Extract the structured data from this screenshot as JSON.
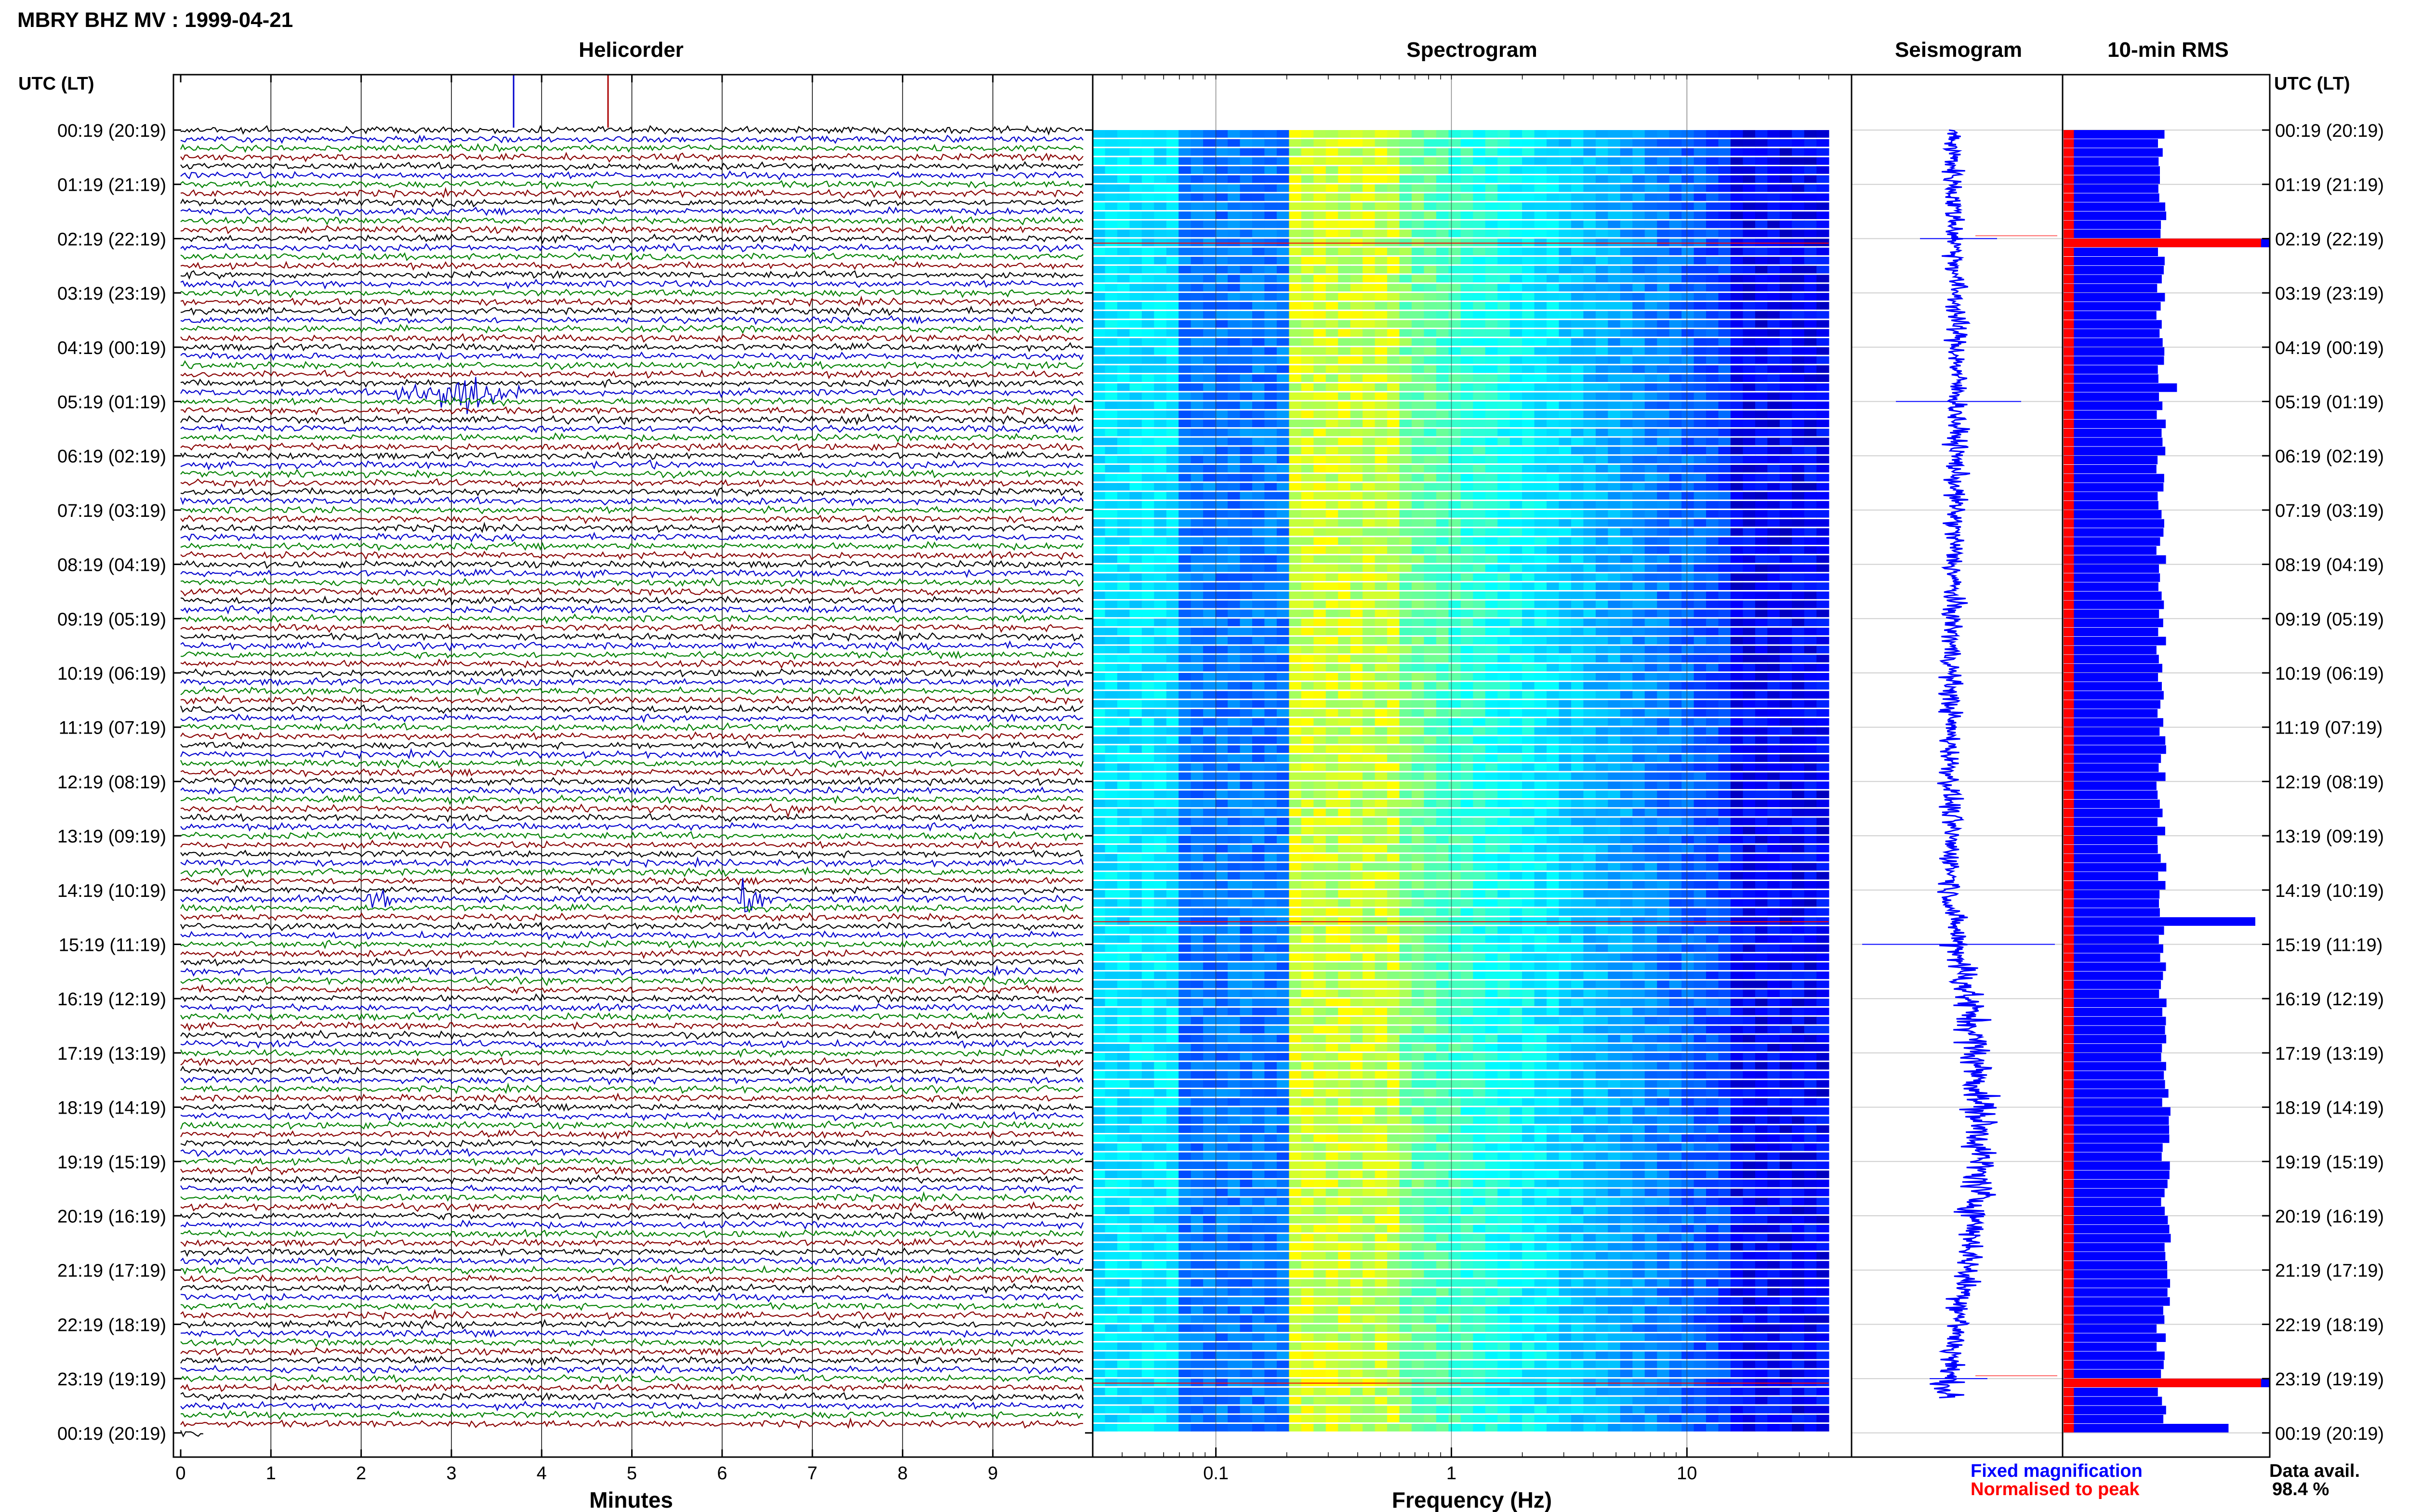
{
  "header": {
    "station_title": "MBRY BHZ MV : 1999-04-21"
  },
  "panels": {
    "helicorder": "Helicorder",
    "spectrogram": "Spectrogram",
    "seismogram": "Seismogram",
    "rms": "10-min RMS"
  },
  "axis_labels": {
    "time_header_left": "UTC (LT)",
    "time_header_right": "UTC (LT)",
    "helicorder_x": "Minutes",
    "spectrogram_x": "Frequency (Hz)"
  },
  "legend": {
    "fixed": "Fixed magnification",
    "normalised": "Normalised to peak",
    "data_avail_label": "Data avail.",
    "data_avail_value": "98.4 %"
  },
  "colors": {
    "trace_cycle": [
      "#000000",
      "#0000cc",
      "#008000",
      "#880000"
    ],
    "fixed_blue": "#0000ff",
    "normalised_red": "#ff0000"
  },
  "chart_data": [
    {
      "type": "line",
      "panel": "helicorder",
      "xlabel": "Minutes",
      "xlim": [
        0,
        10
      ],
      "x_ticks": [
        0,
        1,
        2,
        3,
        4,
        5,
        6,
        7,
        8,
        9
      ],
      "time_labels": [
        "00:19 (20:19)",
        "01:19 (21:19)",
        "02:19 (22:19)",
        "03:19 (23:19)",
        "04:19 (00:19)",
        "05:19 (01:19)",
        "06:19 (02:19)",
        "07:19 (03:19)",
        "08:19 (04:19)",
        "09:19 (05:19)",
        "10:19 (06:19)",
        "11:19 (07:19)",
        "12:19 (08:19)",
        "13:19 (09:19)",
        "14:19 (10:19)",
        "15:19 (11:19)",
        "16:19 (12:19)",
        "17:19 (13:19)",
        "18:19 (14:19)",
        "19:19 (15:19)",
        "20:19 (16:19)",
        "21:19 (17:19)",
        "22:19 (18:19)",
        "23:19 (19:19)",
        "00:19 (20:19)"
      ],
      "traces_per_hour": 6,
      "events": [
        {
          "row": 29,
          "minute": 2.5,
          "amp": 3.0,
          "dur": 0.6
        },
        {
          "row": 29,
          "minute": 3.0,
          "amp": 4.0,
          "dur": 0.8
        },
        {
          "row": 32,
          "minute": 7.4,
          "amp": 1.5,
          "dur": 0.4
        },
        {
          "row": 37,
          "minute": 5.2,
          "amp": 1.2,
          "dur": 0.3
        },
        {
          "row": 71,
          "minute": 6.6,
          "amp": 1.5,
          "dur": 0.4
        },
        {
          "row": 75,
          "minute": 6.6,
          "amp": 1.8,
          "dur": 0.5
        },
        {
          "row": 85,
          "minute": 2.1,
          "amp": 2.0,
          "dur": 0.5
        },
        {
          "row": 85,
          "minute": 6.2,
          "amp": 5.0,
          "dur": 0.3
        }
      ]
    },
    {
      "type": "heatmap",
      "panel": "spectrogram",
      "xlabel": "Frequency (Hz)",
      "x_scale": "log",
      "xlim": [
        0.03,
        50
      ],
      "x_ticks": [
        0.1,
        1,
        10
      ],
      "x_tick_labels": [
        "0.1",
        "1",
        "10"
      ],
      "data_extent_hz": [
        0.03,
        40
      ]
    },
    {
      "type": "line",
      "panel": "seismogram",
      "spike_rows": [
        2.0,
        5.0,
        15.0,
        23.0
      ]
    },
    {
      "type": "bar",
      "panel": "rms",
      "orientation": "horizontal",
      "rows": 144,
      "peaks": [
        {
          "row": 12,
          "value": 1.0
        },
        {
          "row": 28,
          "value": 0.55
        },
        {
          "row": 87,
          "value": 0.93
        },
        {
          "row": 138,
          "value": 1.0
        },
        {
          "row": 143,
          "value": 0.8
        }
      ]
    }
  ]
}
